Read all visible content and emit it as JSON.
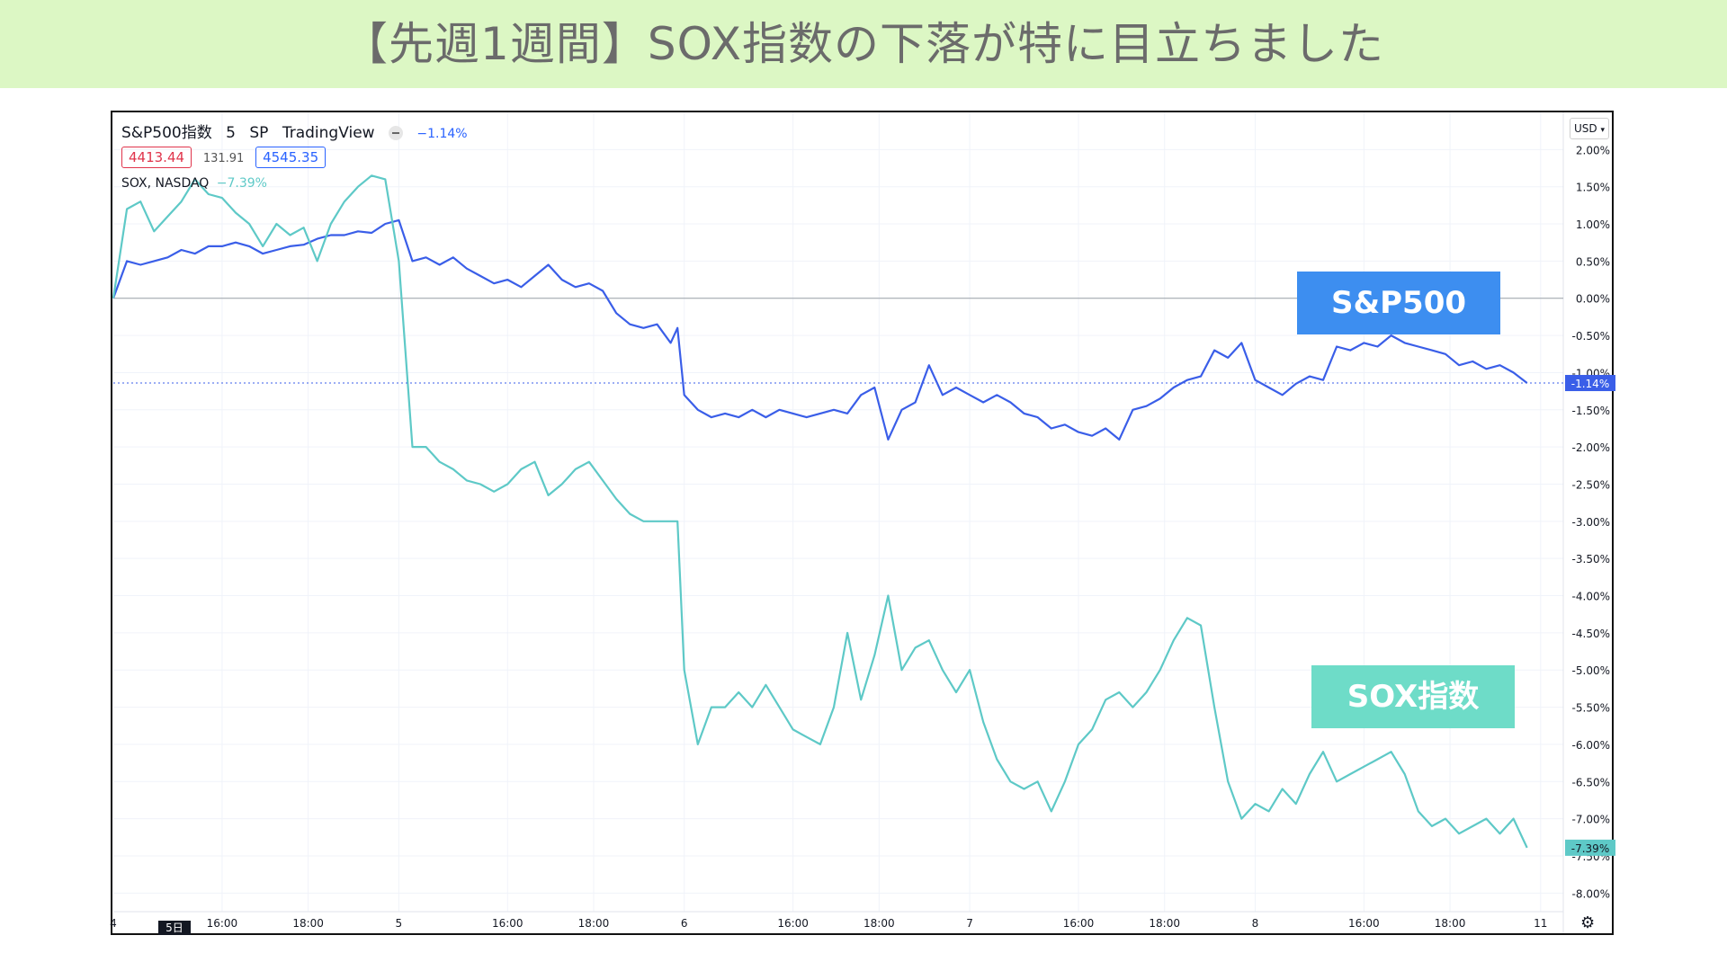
{
  "banner": {
    "title": "【先週1週間】SOX指数の下落が特に目立ちました",
    "background": "#dcf7c4"
  },
  "legend": {
    "symbol": "S&P500指数",
    "interval": "5",
    "exchange": "SP",
    "source": "TradingView",
    "sp_change": "−1.14%",
    "low_value": "4413.44",
    "spread_value": "131.91",
    "high_value": "4545.35",
    "sox_symbol": "SOX, NASDAQ",
    "sox_change": "−7.39%"
  },
  "currency": "USD",
  "currency_icon": "chevron-down-icon",
  "settings_icon": "gear-icon",
  "day_badge": "5日",
  "labels": {
    "sp500": "S&P500",
    "sox": "SOX指数"
  },
  "colors": {
    "sp500": "#3a5ee8",
    "sox": "#5ec9c7",
    "label_sp500": "#3d8ef0",
    "label_sox": "#6edcc8"
  },
  "chart_data": {
    "type": "line",
    "y_unit": "%",
    "ylim": [
      -8.25,
      2.5
    ],
    "y_ticks": [
      "2.00%",
      "1.50%",
      "1.00%",
      "0.50%",
      "0.00%",
      "-0.50%",
      "-1.00%",
      "-1.50%",
      "-2.00%",
      "-2.50%",
      "-3.00%",
      "-3.50%",
      "-4.00%",
      "-4.50%",
      "-5.00%",
      "-5.50%",
      "-6.00%",
      "-6.50%",
      "-7.00%",
      "-7.50%",
      "-8.00%"
    ],
    "y_tick_values": [
      2,
      1.5,
      1,
      0.5,
      0,
      -0.5,
      -1,
      -1.5,
      -2,
      -2.5,
      -3,
      -3.5,
      -4,
      -4.5,
      -5,
      -5.5,
      -6,
      -6.5,
      -7,
      -7.5,
      -8
    ],
    "x_range": [
      0,
      32
    ],
    "x_ticks": [
      {
        "label": "4",
        "x": 0.0
      },
      {
        "label": "16:00",
        "x": 2.4
      },
      {
        "label": "18:00",
        "x": 4.3
      },
      {
        "label": "5",
        "x": 6.3
      },
      {
        "label": "16:00",
        "x": 8.7
      },
      {
        "label": "18:00",
        "x": 10.6
      },
      {
        "label": "6",
        "x": 12.6
      },
      {
        "label": "16:00",
        "x": 15.0
      },
      {
        "label": "18:00",
        "x": 16.9
      },
      {
        "label": "7",
        "x": 18.9
      },
      {
        "label": "16:00",
        "x": 21.3
      },
      {
        "label": "18:00",
        "x": 23.2
      },
      {
        "label": "8",
        "x": 25.2
      },
      {
        "label": "16:00",
        "x": 27.6
      },
      {
        "label": "18:00",
        "x": 29.5
      },
      {
        "label": "11",
        "x": 31.5
      }
    ],
    "series": [
      {
        "name": "S&P500",
        "x": [
          0,
          0.3,
          0.6,
          0.9,
          1.2,
          1.5,
          1.8,
          2.1,
          2.4,
          2.7,
          3.0,
          3.3,
          3.6,
          3.9,
          4.2,
          4.5,
          4.8,
          5.1,
          5.4,
          5.7,
          6.0,
          6.3,
          6.6,
          6.9,
          7.2,
          7.5,
          7.8,
          8.1,
          8.4,
          8.7,
          9.0,
          9.3,
          9.6,
          9.9,
          10.2,
          10.5,
          10.8,
          11.1,
          11.4,
          11.7,
          12.0,
          12.3,
          12.45,
          12.6,
          12.9,
          13.2,
          13.5,
          13.8,
          14.1,
          14.4,
          14.7,
          15.0,
          15.3,
          15.6,
          15.9,
          16.2,
          16.5,
          16.8,
          17.1,
          17.4,
          17.7,
          18.0,
          18.3,
          18.6,
          18.9,
          19.2,
          19.5,
          19.8,
          20.1,
          20.4,
          20.7,
          21.0,
          21.3,
          21.6,
          21.9,
          22.2,
          22.5,
          22.8,
          23.1,
          23.4,
          23.7,
          24.0,
          24.3,
          24.6,
          24.9,
          25.2,
          25.5,
          25.8,
          26.1,
          26.4,
          26.7,
          27.0,
          27.3,
          27.6,
          27.9,
          28.2,
          28.5,
          28.8,
          29.1,
          29.4,
          29.7,
          30.0,
          30.3,
          30.6,
          30.9,
          31.2
        ],
        "values": [
          0.0,
          0.5,
          0.45,
          0.5,
          0.55,
          0.65,
          0.6,
          0.7,
          0.7,
          0.75,
          0.7,
          0.6,
          0.65,
          0.7,
          0.72,
          0.8,
          0.85,
          0.85,
          0.9,
          0.88,
          1.0,
          1.05,
          0.5,
          0.55,
          0.45,
          0.55,
          0.4,
          0.3,
          0.2,
          0.25,
          0.15,
          0.3,
          0.45,
          0.25,
          0.15,
          0.2,
          0.1,
          -0.2,
          -0.35,
          -0.4,
          -0.35,
          -0.6,
          -0.4,
          -1.3,
          -1.5,
          -1.6,
          -1.55,
          -1.6,
          -1.5,
          -1.6,
          -1.5,
          -1.55,
          -1.6,
          -1.55,
          -1.5,
          -1.55,
          -1.3,
          -1.2,
          -1.9,
          -1.5,
          -1.4,
          -0.9,
          -1.3,
          -1.2,
          -1.3,
          -1.4,
          -1.3,
          -1.4,
          -1.55,
          -1.6,
          -1.75,
          -1.7,
          -1.8,
          -1.85,
          -1.75,
          -1.9,
          -1.5,
          -1.45,
          -1.35,
          -1.2,
          -1.1,
          -1.05,
          -0.7,
          -0.8,
          -0.6,
          -1.1,
          -1.2,
          -1.3,
          -1.15,
          -1.05,
          -1.1,
          -0.65,
          -0.7,
          -0.6,
          -0.65,
          -0.5,
          -0.6,
          -0.65,
          -0.7,
          -0.75,
          -0.9,
          -0.85,
          -0.95,
          -0.9,
          -1.0,
          -1.14
        ]
      },
      {
        "name": "SOX指数",
        "x": [
          0,
          0.3,
          0.6,
          0.9,
          1.2,
          1.5,
          1.8,
          2.1,
          2.4,
          2.7,
          3.0,
          3.3,
          3.6,
          3.9,
          4.2,
          4.5,
          4.8,
          5.1,
          5.4,
          5.7,
          6.0,
          6.3,
          6.6,
          6.9,
          7.2,
          7.5,
          7.8,
          8.1,
          8.4,
          8.7,
          9.0,
          9.3,
          9.6,
          9.9,
          10.2,
          10.5,
          10.8,
          11.1,
          11.4,
          11.7,
          12.0,
          12.3,
          12.45,
          12.6,
          12.9,
          13.2,
          13.5,
          13.8,
          14.1,
          14.4,
          14.7,
          15.0,
          15.3,
          15.6,
          15.9,
          16.2,
          16.5,
          16.8,
          17.1,
          17.4,
          17.7,
          18.0,
          18.3,
          18.6,
          18.9,
          19.2,
          19.5,
          19.8,
          20.1,
          20.4,
          20.7,
          21.0,
          21.3,
          21.6,
          21.9,
          22.2,
          22.5,
          22.8,
          23.1,
          23.4,
          23.7,
          24.0,
          24.3,
          24.6,
          24.9,
          25.2,
          25.5,
          25.8,
          26.1,
          26.4,
          26.7,
          27.0,
          27.3,
          27.6,
          27.9,
          28.2,
          28.5,
          28.8,
          29.1,
          29.4,
          29.7,
          30.0,
          30.3,
          30.6,
          30.9,
          31.2
        ],
        "values": [
          0.0,
          1.2,
          1.3,
          0.9,
          1.1,
          1.3,
          1.6,
          1.4,
          1.35,
          1.15,
          1.0,
          0.7,
          1.0,
          0.85,
          0.95,
          0.5,
          1.0,
          1.3,
          1.5,
          1.65,
          1.6,
          0.5,
          -2.0,
          -2.0,
          -2.2,
          -2.3,
          -2.45,
          -2.5,
          -2.6,
          -2.5,
          -2.3,
          -2.2,
          -2.65,
          -2.5,
          -2.3,
          -2.2,
          -2.45,
          -2.7,
          -2.9,
          -3.0,
          -3.0,
          -3.0,
          -3.0,
          -5.0,
          -6.0,
          -5.5,
          -5.5,
          -5.3,
          -5.5,
          -5.2,
          -5.5,
          -5.8,
          -5.9,
          -6.0,
          -5.5,
          -4.5,
          -5.4,
          -4.8,
          -4.0,
          -5.0,
          -4.7,
          -4.6,
          -5.0,
          -5.3,
          -5.0,
          -5.7,
          -6.2,
          -6.5,
          -6.6,
          -6.5,
          -6.9,
          -6.5,
          -6.0,
          -5.8,
          -5.4,
          -5.3,
          -5.5,
          -5.3,
          -5.0,
          -4.6,
          -4.3,
          -4.4,
          -5.5,
          -6.5,
          -7.0,
          -6.8,
          -6.9,
          -6.6,
          -6.8,
          -6.4,
          -6.1,
          -6.5,
          -6.4,
          -6.3,
          -6.2,
          -6.1,
          -6.4,
          -6.9,
          -7.1,
          -7.0,
          -7.2,
          -7.1,
          -7.0,
          -7.2,
          -7.0,
          -7.39
        ]
      }
    ],
    "baseline": 0.0,
    "current_lines": [
      {
        "series": "S&P500",
        "value": -1.14,
        "label": "-1.14%"
      },
      {
        "series": "SOX指数",
        "value": -7.39,
        "label": "-7.39%"
      }
    ],
    "grid": true,
    "legend": "top-left"
  }
}
